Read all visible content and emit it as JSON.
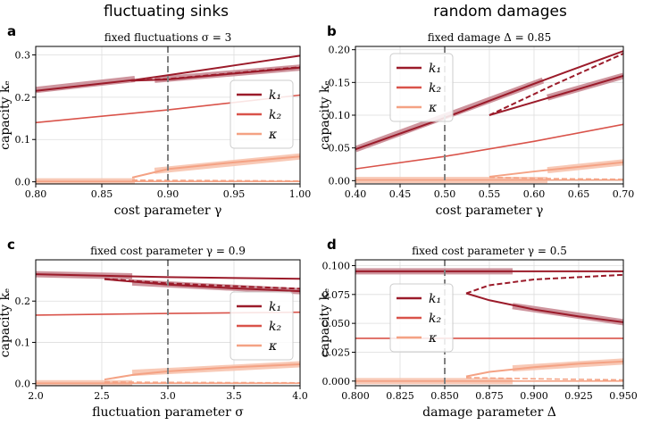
{
  "column_titles": [
    "fluctuating sinks",
    "random damages"
  ],
  "colors": {
    "k1": "#9b1b2a",
    "k2": "#d9534a",
    "kappa": "#f4a284",
    "k1_band": "#c98a94",
    "kappa_band": "#f7c3ae",
    "vline": "#808080",
    "grid": "#dddddd"
  },
  "chart_data": [
    {
      "id": "a",
      "letter": "a",
      "type": "line",
      "title": "fixed fluctuations σ = 3",
      "xlabel": "cost parameter γ",
      "ylabel": "capacity kₑ",
      "xlim": [
        0.8,
        1.0
      ],
      "ylim": [
        -0.005,
        0.32
      ],
      "xticks": [
        "0.80",
        "0.85",
        "0.90",
        "0.95",
        "1.00"
      ],
      "xtick_values": [
        0.8,
        0.85,
        0.9,
        0.95,
        1.0
      ],
      "yticks": [
        "0.0",
        "0.1",
        "0.2",
        "0.3"
      ],
      "ytick_values": [
        0.0,
        0.1,
        0.2,
        0.3
      ],
      "vline": 0.9,
      "legend": [
        "k₁",
        "k₂",
        "κ"
      ],
      "series": [
        {
          "name": "k1 upper",
          "color": "k1",
          "width": 2,
          "x": [
            0.8,
            0.875,
            0.9,
            0.95,
            1.0
          ],
          "y": [
            0.215,
            0.241,
            0.252,
            0.275,
            0.298
          ]
        },
        {
          "name": "k1 lower",
          "color": "k1",
          "width": 2,
          "x": [
            0.872,
            0.9,
            0.95,
            1.0
          ],
          "y": [
            0.239,
            0.242,
            0.256,
            0.27
          ]
        },
        {
          "name": "k1 unstable",
          "color": "k1",
          "width": 2,
          "dash": true,
          "x": [
            0.872,
            0.9,
            0.95,
            1.0
          ],
          "y": [
            0.24,
            0.243,
            0.257,
            0.271
          ]
        },
        {
          "name": "k2",
          "color": "k2",
          "width": 1.6,
          "x": [
            0.8,
            0.9,
            1.0
          ],
          "y": [
            0.14,
            0.17,
            0.205
          ]
        },
        {
          "name": "kappa low",
          "color": "kappa",
          "width": 1.6,
          "x": [
            0.8,
            1.0
          ],
          "y": [
            0.001,
            0.001
          ]
        },
        {
          "name": "kappa unstable",
          "color": "kappa",
          "width": 1.6,
          "dash": true,
          "x": [
            0.873,
            0.93,
            1.0
          ],
          "y": [
            0.004,
            0.003,
            0.002
          ]
        },
        {
          "name": "kappa upper",
          "color": "kappa",
          "width": 2,
          "x": [
            0.873,
            0.9,
            0.95,
            1.0
          ],
          "y": [
            0.01,
            0.03,
            0.046,
            0.06
          ]
        }
      ],
      "bands": [
        {
          "color": "k1_band",
          "x": [
            0.8,
            0.875
          ],
          "y": [
            0.217,
            0.243
          ]
        },
        {
          "color": "k1_band",
          "x": [
            0.89,
            1.0
          ],
          "y": [
            0.241,
            0.27
          ]
        },
        {
          "color": "kappa_band",
          "x": [
            0.8,
            0.875
          ],
          "y": [
            0.001,
            0.001
          ]
        },
        {
          "color": "kappa_band",
          "x": [
            0.89,
            1.0
          ],
          "y": [
            0.026,
            0.06
          ]
        }
      ]
    },
    {
      "id": "b",
      "letter": "b",
      "type": "line",
      "title": "fixed damage Δ = 0.85",
      "xlabel": "cost parameter γ",
      "ylabel": "capacity kₑ",
      "xlim": [
        0.4,
        0.7
      ],
      "ylim": [
        -0.005,
        0.205
      ],
      "xticks": [
        "0.40",
        "0.45",
        "0.50",
        "0.55",
        "0.60",
        "0.65",
        "0.70"
      ],
      "xtick_values": [
        0.4,
        0.45,
        0.5,
        0.55,
        0.6,
        0.65,
        0.7
      ],
      "yticks": [
        "0.00",
        "0.05",
        "0.10",
        "0.15",
        "0.20"
      ],
      "ytick_values": [
        0.0,
        0.05,
        0.1,
        0.15,
        0.2
      ],
      "vline": 0.5,
      "legend": [
        "k₁",
        "k₂",
        "κ"
      ],
      "series": [
        {
          "name": "k1 upper",
          "color": "k1",
          "width": 2,
          "x": [
            0.4,
            0.5,
            0.6,
            0.7
          ],
          "y": [
            0.048,
            0.096,
            0.148,
            0.198
          ]
        },
        {
          "name": "k1 lower",
          "color": "k1",
          "width": 2,
          "x": [
            0.55,
            0.62,
            0.7
          ],
          "y": [
            0.1,
            0.128,
            0.16
          ]
        },
        {
          "name": "k1 unstable",
          "color": "k1",
          "width": 2,
          "dash": true,
          "x": [
            0.55,
            0.62,
            0.7
          ],
          "y": [
            0.1,
            0.145,
            0.194
          ]
        },
        {
          "name": "k2",
          "color": "k2",
          "width": 1.6,
          "x": [
            0.4,
            0.5,
            0.6,
            0.7
          ],
          "y": [
            0.018,
            0.037,
            0.06,
            0.086
          ]
        },
        {
          "name": "kappa low",
          "color": "kappa",
          "width": 1.6,
          "x": [
            0.4,
            0.7
          ],
          "y": [
            0.001,
            0.001
          ]
        },
        {
          "name": "kappa unstable",
          "color": "kappa",
          "width": 1.6,
          "dash": true,
          "x": [
            0.55,
            0.62,
            0.7
          ],
          "y": [
            0.005,
            0.003,
            0.002
          ]
        },
        {
          "name": "kappa upper",
          "color": "kappa",
          "width": 2,
          "x": [
            0.55,
            0.6,
            0.65,
            0.7
          ],
          "y": [
            0.006,
            0.014,
            0.021,
            0.028
          ]
        }
      ],
      "bands": [
        {
          "color": "k1_band",
          "x": [
            0.4,
            0.61
          ],
          "y": [
            0.048,
            0.153
          ]
        },
        {
          "color": "k1_band",
          "x": [
            0.615,
            0.7
          ],
          "y": [
            0.127,
            0.16
          ]
        },
        {
          "color": "kappa_band",
          "x": [
            0.4,
            0.615
          ],
          "y": [
            0.001,
            0.001
          ]
        },
        {
          "color": "kappa_band",
          "x": [
            0.615,
            0.7
          ],
          "y": [
            0.016,
            0.028
          ]
        }
      ]
    },
    {
      "id": "c",
      "letter": "c",
      "type": "line",
      "title": "fixed cost parameter γ = 0.9",
      "xlabel": "fluctuation parameter σ",
      "ylabel": "capacity kₑ",
      "xlim": [
        2.0,
        4.0
      ],
      "ylim": [
        -0.005,
        0.3
      ],
      "xticks": [
        "2.0",
        "2.5",
        "3.0",
        "3.5",
        "4.0"
      ],
      "xtick_values": [
        2.0,
        2.5,
        3.0,
        3.5,
        4.0
      ],
      "yticks": [
        "0.0",
        "0.1",
        "0.2"
      ],
      "ytick_values": [
        0.0,
        0.1,
        0.2
      ],
      "vline": 3.0,
      "legend": [
        "k₁",
        "k₂",
        "κ"
      ],
      "series": [
        {
          "name": "k1 upper",
          "color": "k1",
          "width": 2,
          "x": [
            2.0,
            3.0,
            4.0
          ],
          "y": [
            0.265,
            0.258,
            0.254
          ]
        },
        {
          "name": "k1 lower",
          "color": "k1",
          "width": 2,
          "x": [
            2.52,
            3.0,
            3.5,
            4.0
          ],
          "y": [
            0.253,
            0.24,
            0.231,
            0.224
          ]
        },
        {
          "name": "k1 unstable",
          "color": "k1",
          "width": 2,
          "dash": true,
          "x": [
            2.52,
            3.0,
            3.5,
            4.0
          ],
          "y": [
            0.254,
            0.243,
            0.236,
            0.23
          ]
        },
        {
          "name": "k2",
          "color": "k2",
          "width": 1.6,
          "x": [
            2.0,
            3.0,
            4.0
          ],
          "y": [
            0.166,
            0.17,
            0.173
          ]
        },
        {
          "name": "kappa low",
          "color": "kappa",
          "width": 1.6,
          "x": [
            2.0,
            4.0
          ],
          "y": [
            0.001,
            0.001
          ]
        },
        {
          "name": "kappa unstable",
          "color": "kappa",
          "width": 1.6,
          "dash": true,
          "x": [
            2.52,
            3.0,
            4.0
          ],
          "y": [
            0.004,
            0.003,
            0.002
          ]
        },
        {
          "name": "kappa upper",
          "color": "kappa",
          "width": 2,
          "x": [
            2.52,
            2.75,
            3.0,
            3.5,
            4.0
          ],
          "y": [
            0.01,
            0.022,
            0.03,
            0.04,
            0.047
          ]
        }
      ],
      "bands": [
        {
          "color": "k1_band",
          "x": [
            2.0,
            2.73
          ],
          "y": [
            0.265,
            0.26
          ]
        },
        {
          "color": "k1_band",
          "x": [
            2.73,
            4.0
          ],
          "y": [
            0.245,
            0.224
          ]
        },
        {
          "color": "kappa_band",
          "x": [
            2.0,
            2.73
          ],
          "y": [
            0.001,
            0.001
          ]
        },
        {
          "color": "kappa_band",
          "x": [
            2.73,
            4.0
          ],
          "y": [
            0.026,
            0.047
          ]
        }
      ]
    },
    {
      "id": "d",
      "letter": "d",
      "type": "line",
      "title": "fixed cost parameter γ = 0.5",
      "xlabel": "damage parameter Δ",
      "ylabel": "capacity kₑ",
      "xlim": [
        0.8,
        0.95
      ],
      "ylim": [
        -0.004,
        0.105
      ],
      "xticks": [
        "0.800",
        "0.825",
        "0.850",
        "0.875",
        "0.900",
        "0.925",
        "0.950"
      ],
      "xtick_values": [
        0.8,
        0.825,
        0.85,
        0.875,
        0.9,
        0.925,
        0.95
      ],
      "yticks": [
        "0.000",
        "0.025",
        "0.050",
        "0.075",
        "0.100"
      ],
      "ytick_values": [
        0.0,
        0.025,
        0.05,
        0.075,
        0.1
      ],
      "vline": 0.85,
      "legend": [
        "k₁",
        "k₂",
        "κ"
      ],
      "series": [
        {
          "name": "k1 upper",
          "color": "k1",
          "width": 2,
          "x": [
            0.8,
            0.95
          ],
          "y": [
            0.095,
            0.095
          ]
        },
        {
          "name": "k1 lower",
          "color": "k1",
          "width": 2,
          "x": [
            0.862,
            0.875,
            0.9,
            0.925,
            0.95
          ],
          "y": [
            0.076,
            0.07,
            0.062,
            0.056,
            0.051
          ]
        },
        {
          "name": "k1 unstable",
          "color": "k1",
          "width": 2,
          "dash": true,
          "x": [
            0.862,
            0.875,
            0.9,
            0.925,
            0.95
          ],
          "y": [
            0.076,
            0.083,
            0.088,
            0.09,
            0.092
          ]
        },
        {
          "name": "k2",
          "color": "k2",
          "width": 1.6,
          "x": [
            0.8,
            0.95
          ],
          "y": [
            0.037,
            0.037
          ]
        },
        {
          "name": "kappa low",
          "color": "kappa",
          "width": 1.6,
          "x": [
            0.8,
            0.95
          ],
          "y": [
            0.0,
            0.0
          ]
        },
        {
          "name": "kappa unstable",
          "color": "kappa",
          "width": 1.6,
          "dash": true,
          "x": [
            0.862,
            0.9,
            0.95
          ],
          "y": [
            0.003,
            0.002,
            0.001
          ]
        },
        {
          "name": "kappa upper",
          "color": "kappa",
          "width": 2,
          "x": [
            0.862,
            0.875,
            0.9,
            0.925,
            0.95
          ],
          "y": [
            0.004,
            0.008,
            0.012,
            0.015,
            0.017
          ]
        }
      ],
      "bands": [
        {
          "color": "k1_band",
          "x": [
            0.8,
            0.888
          ],
          "y": [
            0.095,
            0.095
          ]
        },
        {
          "color": "k1_band",
          "x": [
            0.888,
            0.95
          ],
          "y": [
            0.065,
            0.051
          ]
        },
        {
          "color": "kappa_band",
          "x": [
            0.8,
            0.888
          ],
          "y": [
            0.0,
            0.0
          ]
        },
        {
          "color": "kappa_band",
          "x": [
            0.888,
            0.95
          ],
          "y": [
            0.011,
            0.017
          ]
        }
      ]
    }
  ]
}
